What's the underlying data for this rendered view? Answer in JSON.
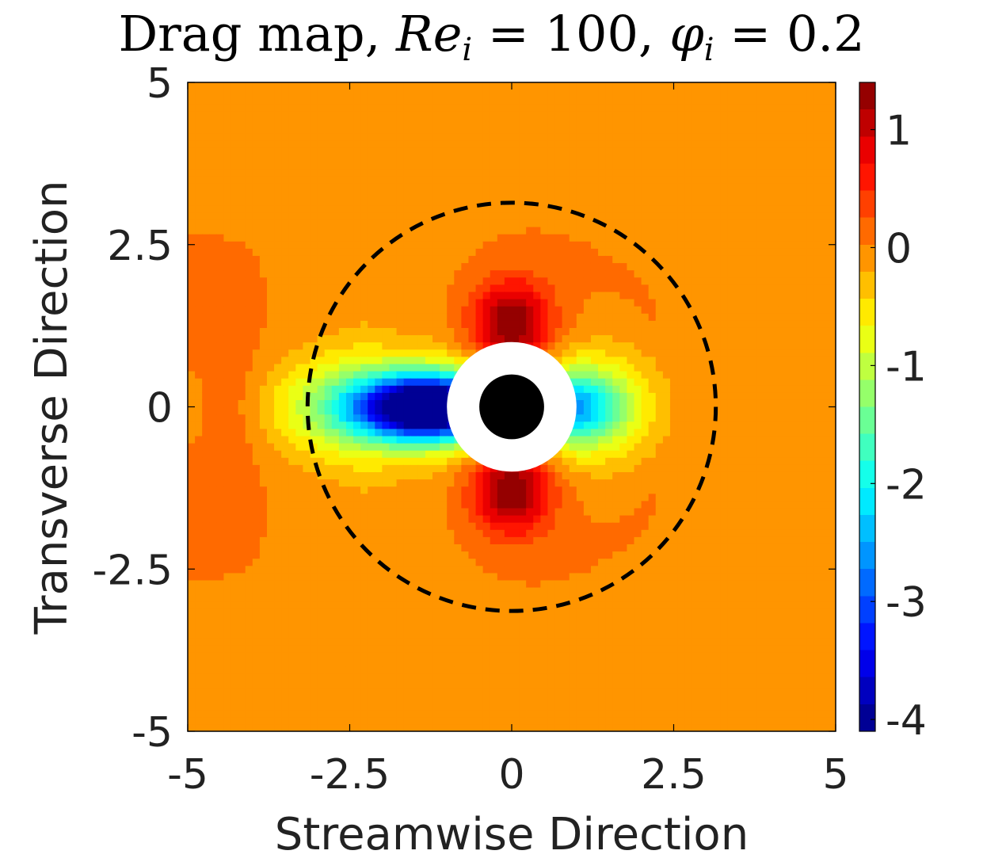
{
  "chart_data": {
    "type": "heatmap",
    "subtype": "filled-contour",
    "title": {
      "prefix": "Drag map, ",
      "re_symbol": "Re",
      "re_subscript": "i",
      "re_value": "= 100, ",
      "phi_symbol": "φ",
      "phi_subscript": "i",
      "phi_value": "= 0.2",
      "full": "Drag map, Re_i = 100, φ_i = 0.2"
    },
    "xlabel": "Streamwise Direction",
    "ylabel": "Transverse Direction",
    "xlim": [
      -5,
      5
    ],
    "ylim": [
      -5,
      5
    ],
    "x_ticks": [
      -5,
      -2.5,
      0,
      2.5,
      5
    ],
    "y_ticks": [
      -5,
      -2.5,
      0,
      2.5,
      5
    ],
    "x_tick_labels": [
      "-5",
      "-2.5",
      "0",
      "2.5",
      "5"
    ],
    "y_tick_labels": [
      "-5",
      "-2.5",
      "0",
      "2.5",
      "5"
    ],
    "colorbar": {
      "range": [
        -4.1,
        1.4
      ],
      "ticks": [
        1,
        0,
        -1,
        -2,
        -3,
        -4
      ],
      "tick_labels": [
        "1",
        "0",
        "-1",
        "-2",
        "-3",
        "-4"
      ],
      "colormap": "jet"
    },
    "reference_circle": {
      "center": [
        0,
        0
      ],
      "radius": 3.15,
      "style": "dashed"
    },
    "exclusion_disk": {
      "center": [
        0,
        0
      ],
      "radius": 1.0,
      "color": "#ffffff"
    },
    "particle": {
      "center": [
        0,
        0
      ],
      "radius": 0.5,
      "color": "#000000"
    },
    "background_color": "#ffffff",
    "axis_color": "#000000"
  }
}
